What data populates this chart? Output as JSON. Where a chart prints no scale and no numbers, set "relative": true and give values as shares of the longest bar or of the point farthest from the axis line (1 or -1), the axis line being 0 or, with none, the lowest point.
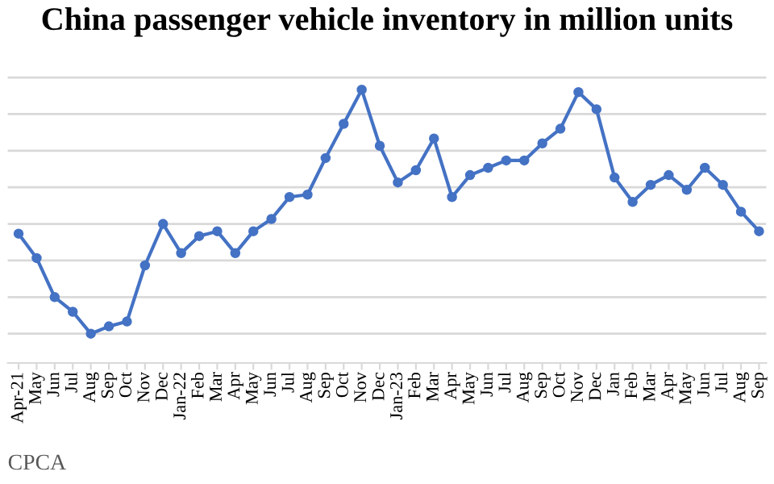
{
  "chart_data": {
    "type": "line",
    "title": "China passenger vehicle inventory in million units",
    "categories": [
      "Apr-21",
      "May",
      "Jun",
      "Jul",
      "Aug",
      "Sep",
      "Oct",
      "Nov",
      "Dec",
      "Jan-22",
      "Feb",
      "Mar",
      "Apr",
      "May",
      "Jun",
      "Jul",
      "Aug",
      "Sep",
      "Oct",
      "Nov",
      "Dec",
      "Jan-23",
      "Feb",
      "Mar",
      "Apr",
      "May",
      "Jun",
      "Jul",
      "Aug",
      "Sep",
      "Oct",
      "Nov",
      "Dec",
      "Jan",
      "Feb",
      "Mar",
      "Apr",
      "May",
      "Jun",
      "Jul",
      "Aug",
      "Sep"
    ],
    "series": [
      {
        "color": "#4472c4",
        "values": [
          0.41,
          0.31,
          0.15,
          0.09,
          0,
          0.03,
          0.05,
          0.28,
          0.45,
          0.33,
          0.4,
          0.42,
          0.33,
          0.42,
          0.47,
          0.56,
          0.57,
          0.72,
          0.86,
          1,
          0.77,
          0.62,
          0.67,
          0.8,
          0.56,
          0.65,
          0.68,
          0.71,
          0.71,
          0.78,
          0.84,
          0.99,
          0.92,
          0.64,
          0.54,
          0.61,
          0.65,
          0.59,
          0.68,
          0.61,
          0.5,
          0.42
        ]
      }
    ],
    "relative": true,
    "grid": "y",
    "marker": "circle",
    "line_style": "solid",
    "annotations": [
      "CPCA"
    ]
  }
}
